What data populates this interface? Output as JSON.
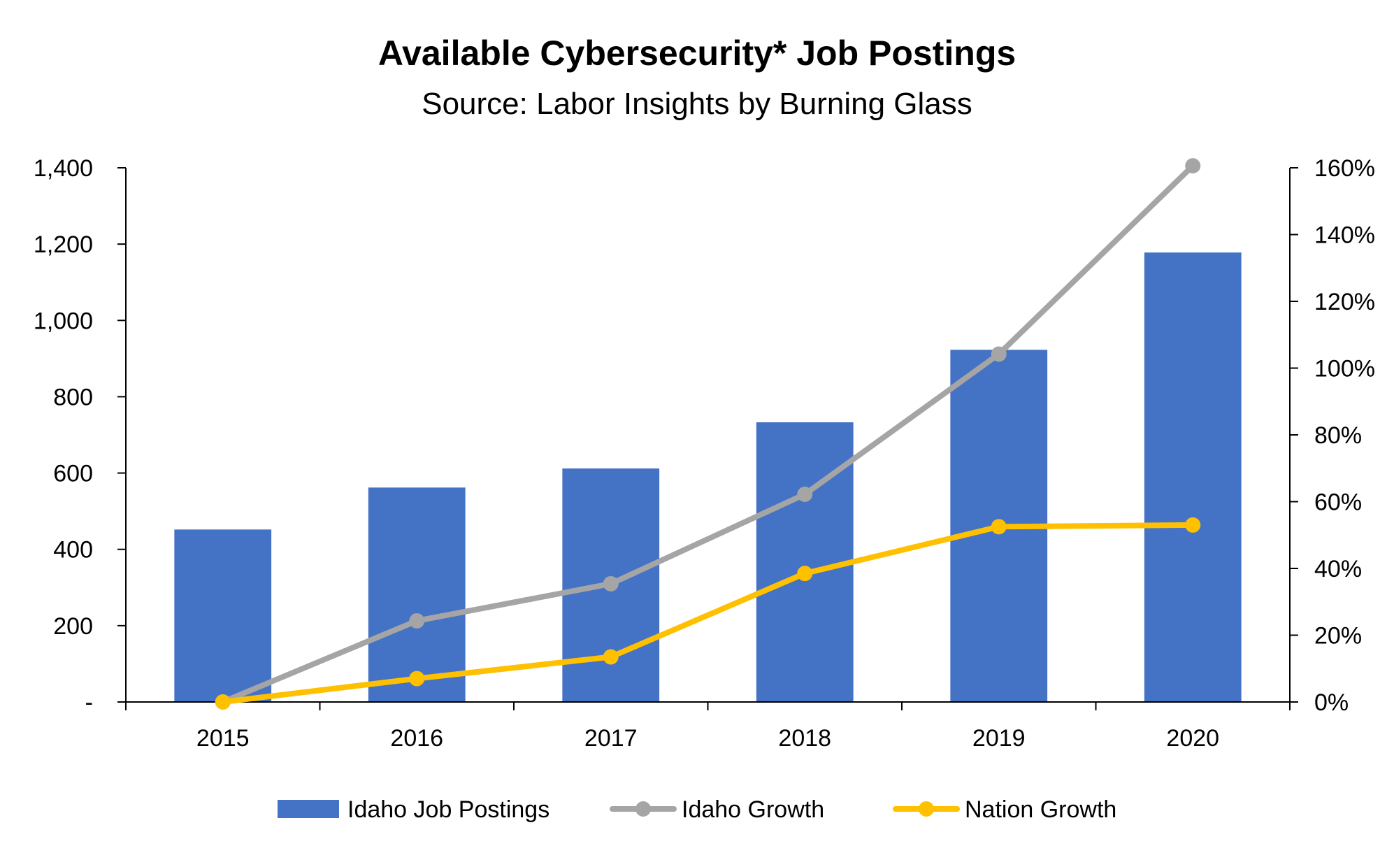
{
  "chart_data": {
    "type": "bar",
    "title": "Available Cybersecurity* Job Postings",
    "subtitle": "Source: Labor Insights by Burning Glass",
    "categories": [
      "2015",
      "2016",
      "2017",
      "2018",
      "2019",
      "2020"
    ],
    "series": [
      {
        "name": "Idaho Job Postings",
        "type": "bar",
        "axis": "left",
        "color": "#4472C4",
        "values": [
          452,
          562,
          612,
          733,
          923,
          1178
        ]
      },
      {
        "name": "Idaho Growth",
        "type": "line",
        "axis": "right",
        "color": "#A5A5A5",
        "values": [
          0,
          24.3,
          35.4,
          62.2,
          104.2,
          160.6
        ]
      },
      {
        "name": "Nation Growth",
        "type": "line",
        "axis": "right",
        "color": "#FFC000",
        "values": [
          0,
          7.0,
          13.5,
          38.5,
          52.5,
          53.0
        ]
      }
    ],
    "left_axis": {
      "ylim": [
        0,
        1400
      ],
      "ticks": [
        0,
        200,
        400,
        600,
        800,
        1000,
        1200,
        1400
      ],
      "tick_labels": [
        "-",
        "200",
        "400",
        "600",
        "800",
        "1,000",
        "1,200",
        "1,400"
      ]
    },
    "right_axis": {
      "ylim": [
        0,
        160
      ],
      "ticks": [
        0,
        20,
        40,
        60,
        80,
        100,
        120,
        140,
        160
      ],
      "tick_labels": [
        "0%",
        "20%",
        "40%",
        "60%",
        "80%",
        "100%",
        "120%",
        "140%",
        "160%"
      ]
    },
    "grid": false,
    "legend_position": "bottom"
  }
}
